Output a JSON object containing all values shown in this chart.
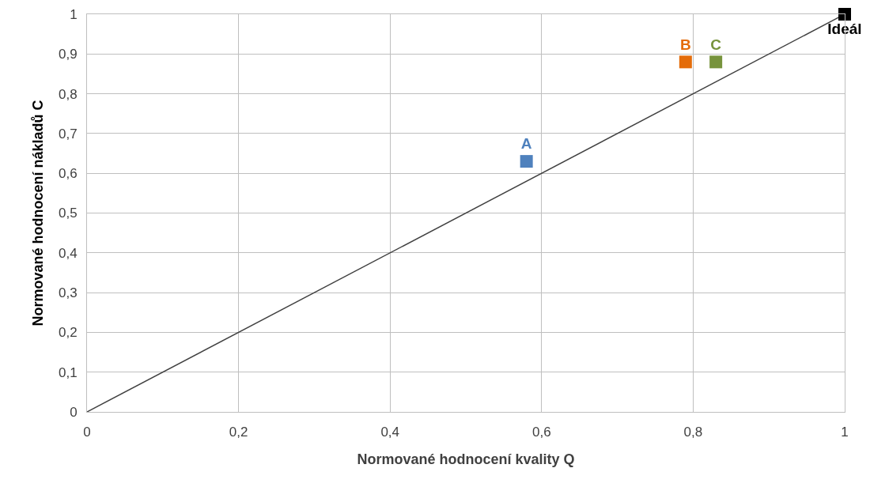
{
  "chart_data": {
    "type": "scatter",
    "xlabel": "Normované hodnocení kvality Q",
    "ylabel": "Normované hodnocení nákladů C",
    "xlim": [
      0,
      1
    ],
    "ylim": [
      0,
      1
    ],
    "xticks": [
      0,
      {
        "value": 0.2,
        "label": "0,2"
      },
      {
        "value": 0.4,
        "label": "0,4"
      },
      {
        "value": 0.6,
        "label": "0,6"
      },
      {
        "value": 0.8,
        "label": "0,8"
      },
      1
    ],
    "yticks": [
      0,
      {
        "value": 0.1,
        "label": "0,1"
      },
      {
        "value": 0.2,
        "label": "0,2"
      },
      {
        "value": 0.3,
        "label": "0,3"
      },
      {
        "value": 0.4,
        "label": "0,4"
      },
      {
        "value": 0.5,
        "label": "0,5"
      },
      {
        "value": 0.6,
        "label": "0,6"
      },
      {
        "value": 0.7,
        "label": "0,7"
      },
      {
        "value": 0.8,
        "label": "0,8"
      },
      {
        "value": 0.9,
        "label": "0,9"
      },
      1
    ],
    "grid": true,
    "legend": false,
    "marker": "square",
    "series": [
      {
        "type": "line",
        "color": "#404040",
        "x": [
          0,
          1
        ],
        "values": [
          0,
          1
        ],
        "marker": "none",
        "line_style": "solid"
      },
      {
        "name": "A",
        "color": "#4f81bd",
        "x": [
          0.58
        ],
        "values": [
          0.63
        ]
      },
      {
        "name": "B",
        "color": "#e46c0a",
        "x": [
          0.79
        ],
        "values": [
          0.88
        ]
      },
      {
        "name": "C",
        "color": "#77933c",
        "x": [
          0.83
        ],
        "values": [
          0.88
        ]
      },
      {
        "name": "Ideál",
        "color": "#000000",
        "x": [
          1
        ],
        "values": [
          1
        ]
      }
    ]
  }
}
